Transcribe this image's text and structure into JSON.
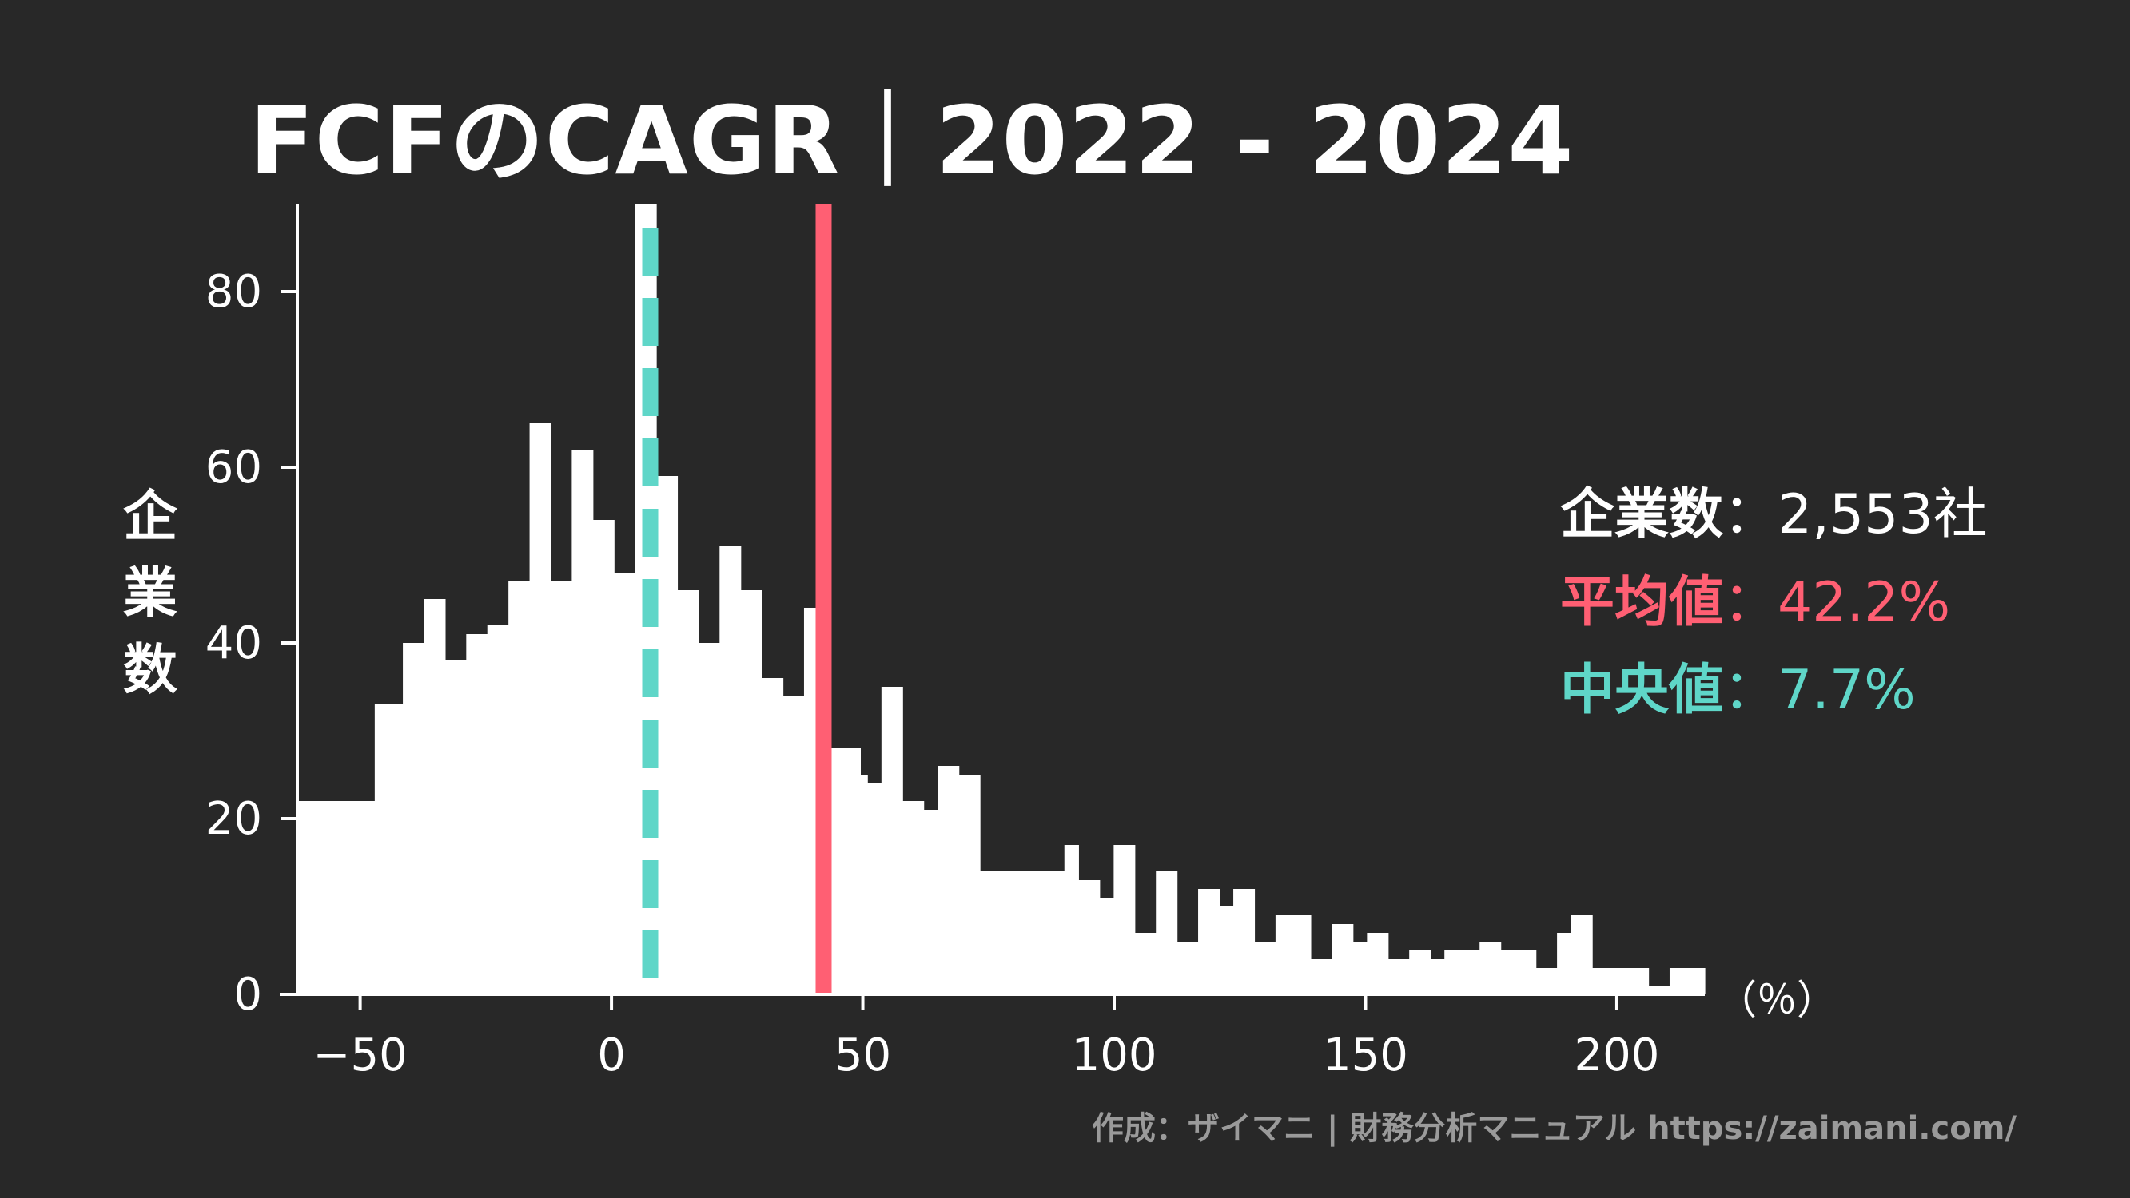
{
  "title": "FCFのCAGR｜2022 - 2024",
  "ylabel": "企業数",
  "unit": "（％）",
  "stats": {
    "count_label": "企業数",
    "count_value": "2,553社",
    "mean_label": "平均値",
    "mean_value": "42.2%",
    "median_label": "中央値",
    "median_value": "7.7%",
    "separator": "："
  },
  "credit": "作成：ザイマニ | 財務分析マニュアル https://zaimani.com/",
  "colors": {
    "background": "#282828",
    "bars": "#ffffff",
    "mean": "#ff5f73",
    "median": "#5fd6c8"
  },
  "chart_data": {
    "type": "bar",
    "title": "FCFのCAGR｜2022 - 2024",
    "xlabel": "（％）",
    "ylabel": "企業数",
    "xlim": [
      -62.5,
      217.5
    ],
    "ylim": [
      0,
      90
    ],
    "xticks": [
      -50,
      0,
      50,
      100,
      150,
      200
    ],
    "xtick_labels": [
      "−50",
      "0",
      "50",
      "100",
      "150",
      "200"
    ],
    "yticks": [
      0,
      20,
      40,
      60,
      80
    ],
    "bin_width": 4,
    "bin_start": -62.5,
    "values": [
      22,
      22,
      22,
      22,
      22,
      22,
      22,
      22,
      22,
      22,
      22,
      33,
      33,
      33,
      33,
      40,
      40,
      40,
      45,
      45,
      45,
      38,
      38,
      38,
      41,
      41,
      41,
      42,
      42,
      42,
      47,
      47,
      47,
      65,
      65,
      65,
      47,
      47,
      47,
      62,
      62,
      62,
      54,
      54,
      54,
      48,
      48,
      48,
      90,
      90,
      90,
      59,
      59,
      59,
      46,
      46,
      46,
      40,
      40,
      40,
      51,
      51,
      51,
      46,
      46,
      46,
      36,
      36,
      36,
      34,
      34,
      34,
      44,
      44,
      44,
      28,
      28,
      28,
      28,
      28,
      25,
      24,
      24,
      35,
      35,
      35,
      22,
      22,
      22,
      21,
      21,
      26,
      26,
      26,
      25,
      25,
      25,
      14,
      14,
      14,
      14,
      14,
      14,
      14,
      14,
      14,
      14,
      14,
      14,
      17,
      17,
      13,
      13,
      13,
      11,
      11,
      17,
      17,
      17,
      7,
      7,
      7,
      14,
      14,
      14,
      6,
      6,
      6,
      12,
      12,
      12,
      10,
      10,
      12,
      12,
      12,
      6,
      6,
      6,
      9,
      9,
      9,
      9,
      9,
      4,
      4,
      4,
      8,
      8,
      8,
      6,
      6,
      7,
      7,
      7,
      4,
      4,
      4,
      5,
      5,
      5,
      4,
      4,
      5,
      5,
      5,
      5,
      5,
      6,
      6,
      6,
      5,
      5,
      5,
      5,
      5,
      3,
      3,
      3,
      7,
      7,
      9,
      9,
      9,
      3,
      3,
      3,
      3,
      3,
      3,
      3,
      3,
      1,
      1,
      1,
      3,
      3,
      3,
      3,
      3
    ],
    "mean": 42.2,
    "median": 7.7,
    "total": 2553
  }
}
